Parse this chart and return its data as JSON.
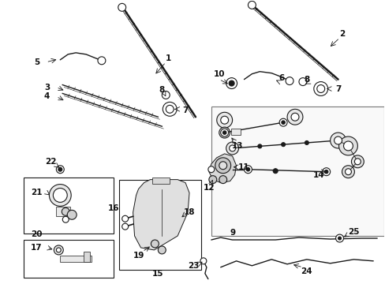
{
  "bg_color": "#ffffff",
  "fig_width": 4.89,
  "fig_height": 3.6,
  "dpi": 100,
  "line_color": "#1a1a1a",
  "lw_blade": 1.8,
  "lw_arm": 1.0,
  "lw_thin": 0.6,
  "label_fontsize": 7.5
}
